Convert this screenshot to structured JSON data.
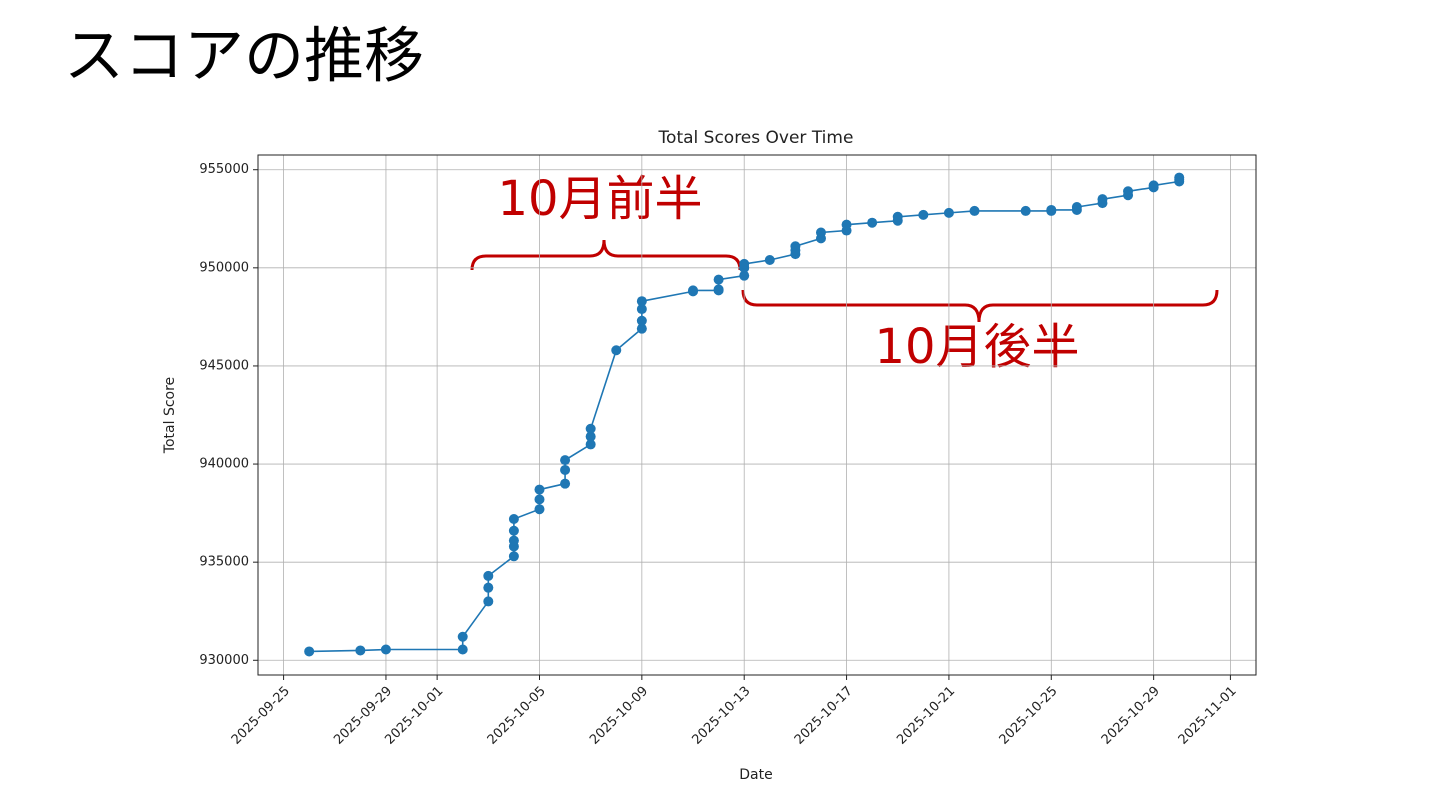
{
  "header": {
    "title": "スコアの推移"
  },
  "chart_data": {
    "type": "line",
    "title": "Total Scores Over Time",
    "x_label": "Date",
    "y_label": "Total Score",
    "color": "#1f77b4",
    "grid": true,
    "markers": true,
    "annotations": [
      "10月前半",
      "10月後半"
    ],
    "x": [
      "2025-09-26",
      "2025-09-28",
      "2025-09-29",
      "2025-10-02",
      "2025-10-02",
      "2025-10-03",
      "2025-10-03",
      "2025-10-03",
      "2025-10-04",
      "2025-10-04",
      "2025-10-04",
      "2025-10-04",
      "2025-10-04",
      "2025-10-05",
      "2025-10-05",
      "2025-10-05",
      "2025-10-06",
      "2025-10-06",
      "2025-10-06",
      "2025-10-07",
      "2025-10-07",
      "2025-10-07",
      "2025-10-08",
      "2025-10-09",
      "2025-10-09",
      "2025-10-09",
      "2025-10-09",
      "2025-10-11",
      "2025-10-11",
      "2025-10-12",
      "2025-10-12",
      "2025-10-12",
      "2025-10-13",
      "2025-10-13",
      "2025-10-13",
      "2025-10-14",
      "2025-10-15",
      "2025-10-15",
      "2025-10-15",
      "2025-10-16",
      "2025-10-16",
      "2025-10-17",
      "2025-10-17",
      "2025-10-18",
      "2025-10-19",
      "2025-10-19",
      "2025-10-20",
      "2025-10-21",
      "2025-10-22",
      "2025-10-24",
      "2025-10-25",
      "2025-10-25",
      "2025-10-26",
      "2025-10-26",
      "2025-10-27",
      "2025-10-27",
      "2025-10-28",
      "2025-10-28",
      "2025-10-29",
      "2025-10-29",
      "2025-10-30",
      "2025-10-30",
      "2025-10-30"
    ],
    "values": [
      930450,
      930500,
      930550,
      930550,
      931200,
      933000,
      933700,
      934300,
      935300,
      935800,
      936100,
      936600,
      937200,
      937700,
      938200,
      938700,
      939000,
      939700,
      940200,
      941000,
      941400,
      941800,
      945800,
      946900,
      947300,
      947900,
      948300,
      948800,
      948850,
      948850,
      948900,
      949400,
      949600,
      950000,
      950200,
      950400,
      950700,
      950900,
      951100,
      951500,
      951800,
      951900,
      952200,
      952300,
      952400,
      952600,
      952700,
      952800,
      952900,
      952900,
      952900,
      952950,
      952950,
      953100,
      953300,
      953500,
      953700,
      953900,
      954100,
      954200,
      954400,
      954500,
      954600
    ],
    "xlim": [
      "2025-09-24",
      "2025-11-02"
    ],
    "xticks": [
      "2025-09-25",
      "2025-09-29",
      "2025-10-01",
      "2025-10-05",
      "2025-10-09",
      "2025-10-13",
      "2025-10-17",
      "2025-10-21",
      "2025-10-25",
      "2025-10-29",
      "2025-11-01"
    ],
    "ylim": [
      929250,
      955750
    ],
    "yticks": [
      930000,
      935000,
      940000,
      945000,
      950000,
      955000
    ]
  }
}
